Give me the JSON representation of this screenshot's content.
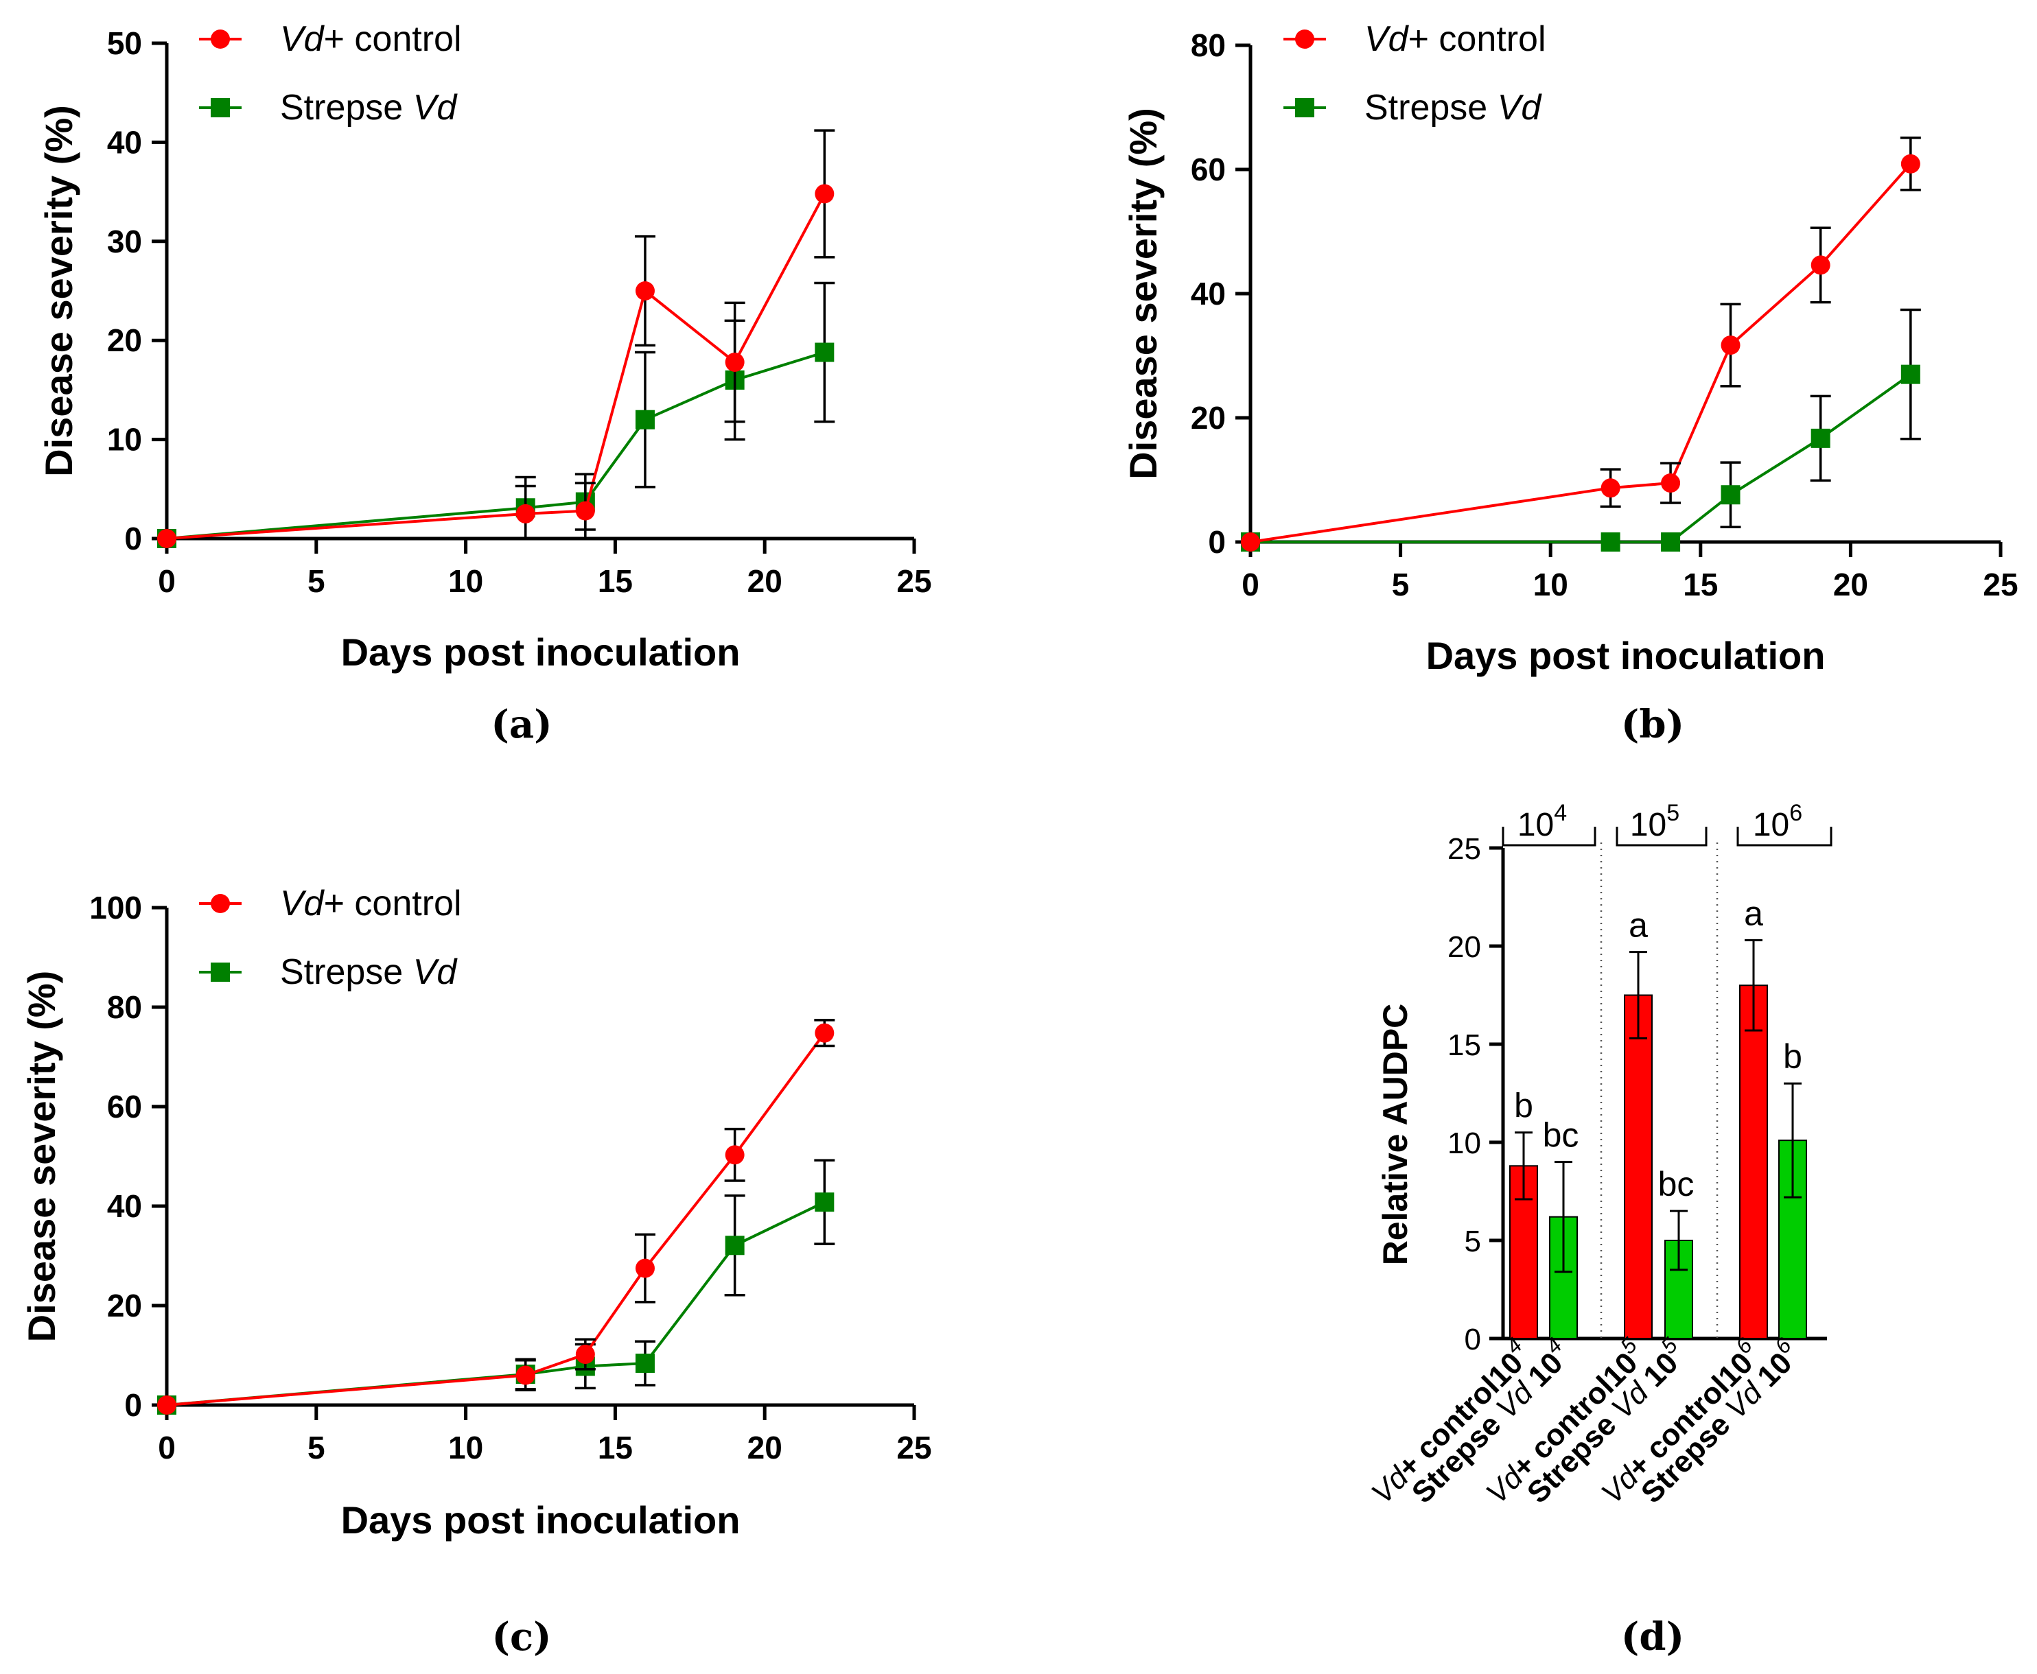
{
  "chart_data": [
    {
      "id": "a",
      "type": "line",
      "caption": "(a)",
      "xlabel": "Days post inoculation",
      "ylabel": "Disease severity (%)",
      "xlim": [
        0,
        25
      ],
      "ylim": [
        0,
        50
      ],
      "xticks": [
        "0",
        "5",
        "10",
        "15",
        "20",
        "25"
      ],
      "yticks": [
        "0",
        "10",
        "20",
        "30",
        "40",
        "50"
      ],
      "series": [
        {
          "name": "control",
          "legend_italic": "Vd",
          "legend_text": "+ control",
          "color": "#ff0000",
          "marker": "circle",
          "points": [
            {
              "x": 0,
              "y": 0,
              "err": 0
            },
            {
              "x": 12,
              "y": 2.5,
              "err": 2.8
            },
            {
              "x": 14,
              "y": 2.8,
              "err": 2.8
            },
            {
              "x": 16,
              "y": 25,
              "err": 5.5
            },
            {
              "x": 19,
              "y": 17.8,
              "err": 6.0
            },
            {
              "x": 22,
              "y": 34.8,
              "err": 6.4
            }
          ]
        },
        {
          "name": "strepse",
          "legend_text": "Strepse ",
          "legend_italic": "Vd",
          "color": "#008000",
          "marker": "square",
          "points": [
            {
              "x": 0,
              "y": 0,
              "err": 0
            },
            {
              "x": 12,
              "y": 3.1,
              "err": 3.1
            },
            {
              "x": 14,
              "y": 3.7,
              "err": 2.8
            },
            {
              "x": 16,
              "y": 12.0,
              "err": 6.8
            },
            {
              "x": 19,
              "y": 16.0,
              "err": 6.0
            },
            {
              "x": 22,
              "y": 18.8,
              "err": 7.0
            }
          ]
        }
      ]
    },
    {
      "id": "b",
      "type": "line",
      "caption": "(b)",
      "xlabel": "Days post inoculation",
      "ylabel": "Disease severity (%)",
      "xlim": [
        0,
        25
      ],
      "ylim": [
        0,
        80
      ],
      "xticks": [
        "0",
        "5",
        "10",
        "15",
        "20",
        "25"
      ],
      "yticks": [
        "0",
        "20",
        "40",
        "60",
        "80"
      ],
      "series": [
        {
          "name": "control",
          "legend_italic": "Vd",
          "legend_text": "+ control",
          "color": "#ff0000",
          "marker": "circle",
          "points": [
            {
              "x": 0,
              "y": 0,
              "err": 0
            },
            {
              "x": 12,
              "y": 8.7,
              "err": 3.0
            },
            {
              "x": 14,
              "y": 9.5,
              "err": 3.2
            },
            {
              "x": 16,
              "y": 31.7,
              "err": 6.6
            },
            {
              "x": 19,
              "y": 44.6,
              "err": 6.0
            },
            {
              "x": 22,
              "y": 60.9,
              "err": 4.2
            }
          ]
        },
        {
          "name": "strepse",
          "legend_text": "Strepse ",
          "legend_italic": "Vd",
          "color": "#008000",
          "marker": "square",
          "points": [
            {
              "x": 0,
              "y": 0,
              "err": 0
            },
            {
              "x": 12,
              "y": 0,
              "err": 0
            },
            {
              "x": 14,
              "y": 0,
              "err": 0
            },
            {
              "x": 16,
              "y": 7.6,
              "err": 5.2
            },
            {
              "x": 19,
              "y": 16.7,
              "err": 6.8
            },
            {
              "x": 22,
              "y": 27.0,
              "err": 10.4
            }
          ]
        }
      ]
    },
    {
      "id": "c",
      "type": "line",
      "caption": "(c)",
      "xlabel": "Days post inoculation",
      "ylabel": "Disease severity (%)",
      "xlim": [
        0,
        25
      ],
      "ylim": [
        0,
        100
      ],
      "xticks": [
        "0",
        "5",
        "10",
        "15",
        "20",
        "25"
      ],
      "yticks": [
        "0",
        "20",
        "40",
        "60",
        "80",
        "100"
      ],
      "series": [
        {
          "name": "control",
          "legend_italic": "Vd",
          "legend_text": "+ control",
          "color": "#ff0000",
          "marker": "circle",
          "points": [
            {
              "x": 0,
              "y": 0,
              "err": 0
            },
            {
              "x": 12,
              "y": 6.0,
              "err": 3.0
            },
            {
              "x": 14,
              "y": 10.2,
              "err": 3.0
            },
            {
              "x": 16,
              "y": 27.5,
              "err": 6.8
            },
            {
              "x": 19,
              "y": 50.3,
              "err": 5.2
            },
            {
              "x": 22,
              "y": 74.8,
              "err": 2.6
            }
          ]
        },
        {
          "name": "strepse",
          "legend_text": "Strepse ",
          "legend_italic": "Vd",
          "color": "#008000",
          "marker": "square",
          "points": [
            {
              "x": 0,
              "y": 0,
              "err": 0
            },
            {
              "x": 12,
              "y": 6.2,
              "err": 3.0
            },
            {
              "x": 14,
              "y": 7.8,
              "err": 4.4
            },
            {
              "x": 16,
              "y": 8.4,
              "err": 4.4
            },
            {
              "x": 19,
              "y": 32.1,
              "err": 10.0
            },
            {
              "x": 22,
              "y": 40.8,
              "err": 8.4
            }
          ]
        }
      ]
    },
    {
      "id": "d",
      "type": "bar",
      "caption": "(d)",
      "ylabel": "Relative AUDPC",
      "ylim": [
        0,
        25
      ],
      "yticks": [
        "0",
        "5",
        "10",
        "15",
        "20",
        "25"
      ],
      "groups": [
        {
          "base": "10",
          "exp": "4"
        },
        {
          "base": "10",
          "exp": "5"
        },
        {
          "base": "10",
          "exp": "6"
        }
      ],
      "bars": [
        {
          "group": 0,
          "value": 8.8,
          "err": 1.7,
          "letter": "b",
          "color": "#ff0000",
          "label_italic": "Vd",
          "label_text": "+ control",
          "label_base": "10",
          "label_exp": "4"
        },
        {
          "group": 0,
          "value": 6.2,
          "err": 2.8,
          "letter": "bc",
          "color": "#00cc00",
          "label_text": "Strepse ",
          "label_italic": "Vd",
          "label_base": " 10",
          "label_exp": "4"
        },
        {
          "group": 1,
          "value": 17.5,
          "err": 2.2,
          "letter": "a",
          "color": "#ff0000",
          "label_italic": "Vd",
          "label_text": "+ control",
          "label_base": "10",
          "label_exp": "5"
        },
        {
          "group": 1,
          "value": 5.0,
          "err": 1.5,
          "letter": "bc",
          "color": "#00cc00",
          "label_text": "Strepse ",
          "label_italic": "Vd",
          "label_base": " 10",
          "label_exp": "5"
        },
        {
          "group": 2,
          "value": 18.0,
          "err": 2.3,
          "letter": "a",
          "color": "#ff0000",
          "label_italic": "Vd",
          "label_text": "+ control",
          "label_base": "10",
          "label_exp": "6"
        },
        {
          "group": 2,
          "value": 10.1,
          "err": 2.9,
          "letter": "b",
          "color": "#00cc00",
          "label_text": "Strepse ",
          "label_italic": "Vd",
          "label_base": " 10",
          "label_exp": "6"
        }
      ]
    }
  ]
}
